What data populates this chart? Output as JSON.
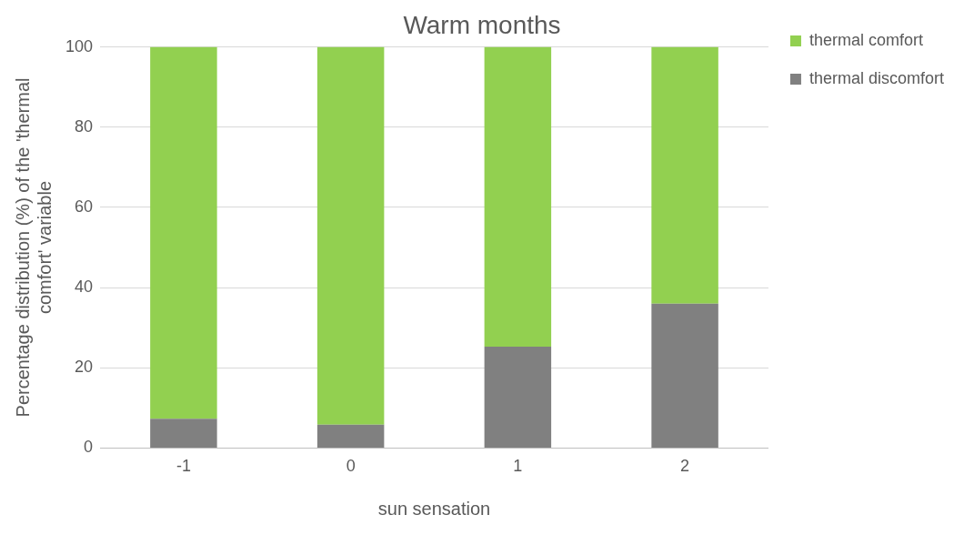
{
  "chart_data": {
    "type": "bar",
    "title": "Warm months",
    "xlabel": "sun sensation",
    "ylabel": "Percentage distribution (%) of the 'thermal comfort' variable",
    "categories": [
      "-1",
      "0",
      "1",
      "2"
    ],
    "stacked": true,
    "series": [
      {
        "name": "thermal discomfort",
        "color": "#808080",
        "values": [
          7.3,
          5.8,
          25.3,
          36.0
        ]
      },
      {
        "name": "thermal comfort",
        "color": "#92d050",
        "values": [
          92.7,
          94.2,
          74.7,
          64.0
        ]
      }
    ],
    "ylim": [
      0,
      100
    ],
    "yticks": [
      0,
      20,
      40,
      60,
      80,
      100
    ],
    "grid": "y",
    "legend": "top right"
  }
}
